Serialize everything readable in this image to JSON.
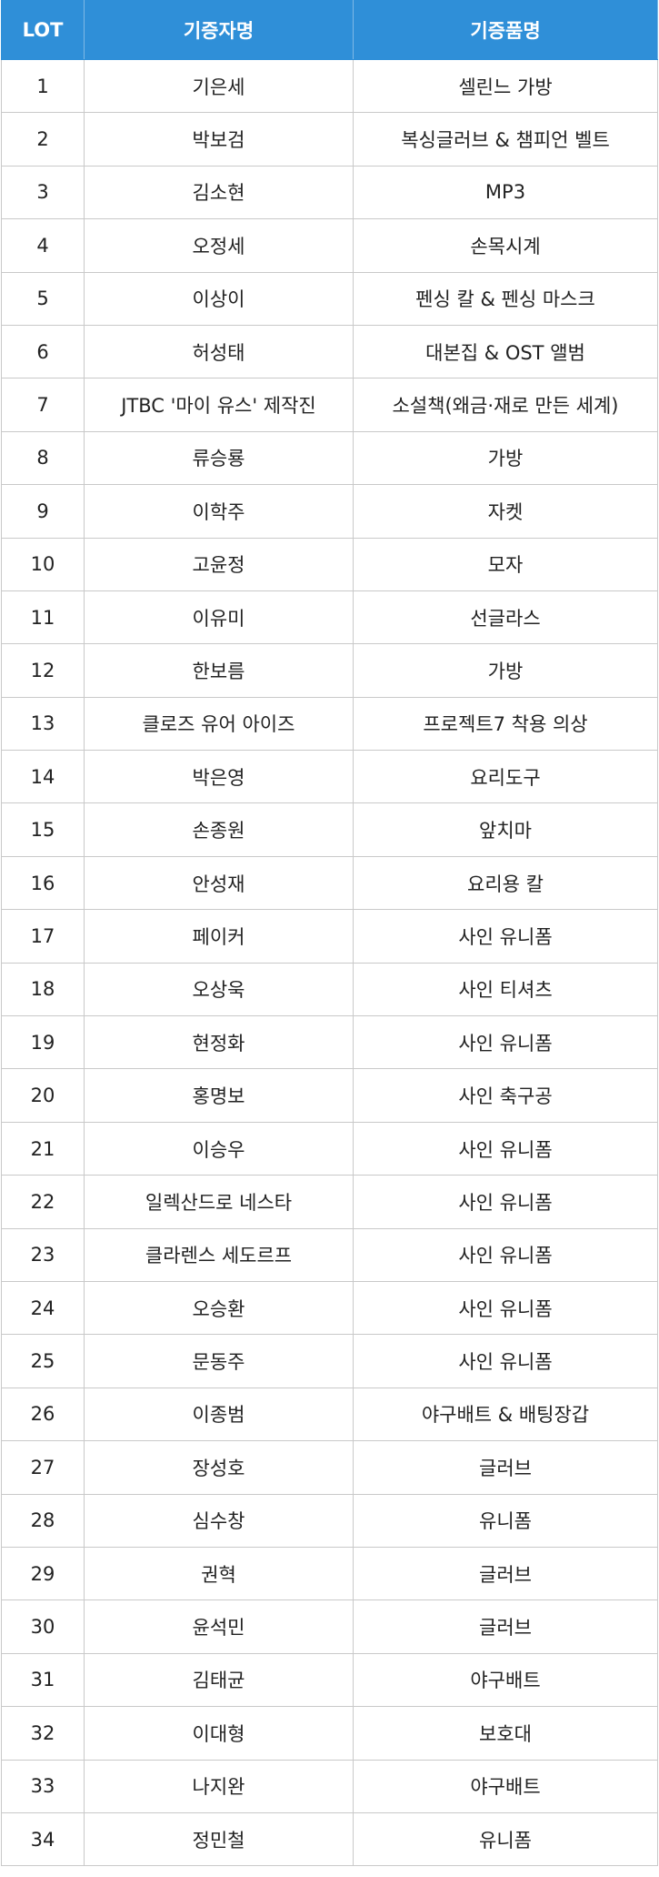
{
  "table": {
    "header": [
      "LOT",
      "기증자명",
      "기증품명"
    ],
    "rows": [
      [
        "1",
        "기은세",
        "셀린느 가방"
      ],
      [
        "2",
        "박보검",
        "복싱글러브 & 챔피언 벨트"
      ],
      [
        "3",
        "김소현",
        "MP3"
      ],
      [
        "4",
        "오정세",
        "손목시계"
      ],
      [
        "5",
        "이상이",
        "펜싱 칼 & 펜싱 마스크"
      ],
      [
        "6",
        "허성태",
        "대본집 & OST 앨범"
      ],
      [
        "7",
        "JTBC '마이 유스' 제작진",
        "소설책(왜금·재로 만든 세계)"
      ],
      [
        "8",
        "류승룡",
        "가방"
      ],
      [
        "9",
        "이학주",
        "자켓"
      ],
      [
        "10",
        "고윤정",
        "모자"
      ],
      [
        "11",
        "이유미",
        "선글라스"
      ],
      [
        "12",
        "한보름",
        "가방"
      ],
      [
        "13",
        "클로즈 유어 아이즈",
        "프로젝트7 착용 의상"
      ],
      [
        "14",
        "박은영",
        "요리도구"
      ],
      [
        "15",
        "손종원",
        "앞치마"
      ],
      [
        "16",
        "안성재",
        "요리용 칼"
      ],
      [
        "17",
        "페이커",
        "사인 유니폼"
      ],
      [
        "18",
        "오상욱",
        "사인 티셔츠"
      ],
      [
        "19",
        "현정화",
        "사인 유니폼"
      ],
      [
        "20",
        "홍명보",
        "사인 축구공"
      ],
      [
        "21",
        "이승우",
        "사인 유니폼"
      ],
      [
        "22",
        "일렉산드로 네스타",
        "사인 유니폼"
      ],
      [
        "23",
        "클라렌스 세도르프",
        "사인 유니폼"
      ],
      [
        "24",
        "오승환",
        "사인 유니폼"
      ],
      [
        "25",
        "문동주",
        "사인 유니폼"
      ],
      [
        "26",
        "이종범",
        "야구배트 & 배팅장갑"
      ],
      [
        "27",
        "장성호",
        "글러브"
      ],
      [
        "28",
        "심수창",
        "유니폼"
      ],
      [
        "29",
        "권혁",
        "글러브"
      ],
      [
        "30",
        "윤석민",
        "글러브"
      ],
      [
        "31",
        "김태균",
        "야구배트"
      ],
      [
        "32",
        "이대형",
        "보호대"
      ],
      [
        "33",
        "나지완",
        "야구배트"
      ],
      [
        "34",
        "정민철",
        "유니폼"
      ]
    ]
  }
}
